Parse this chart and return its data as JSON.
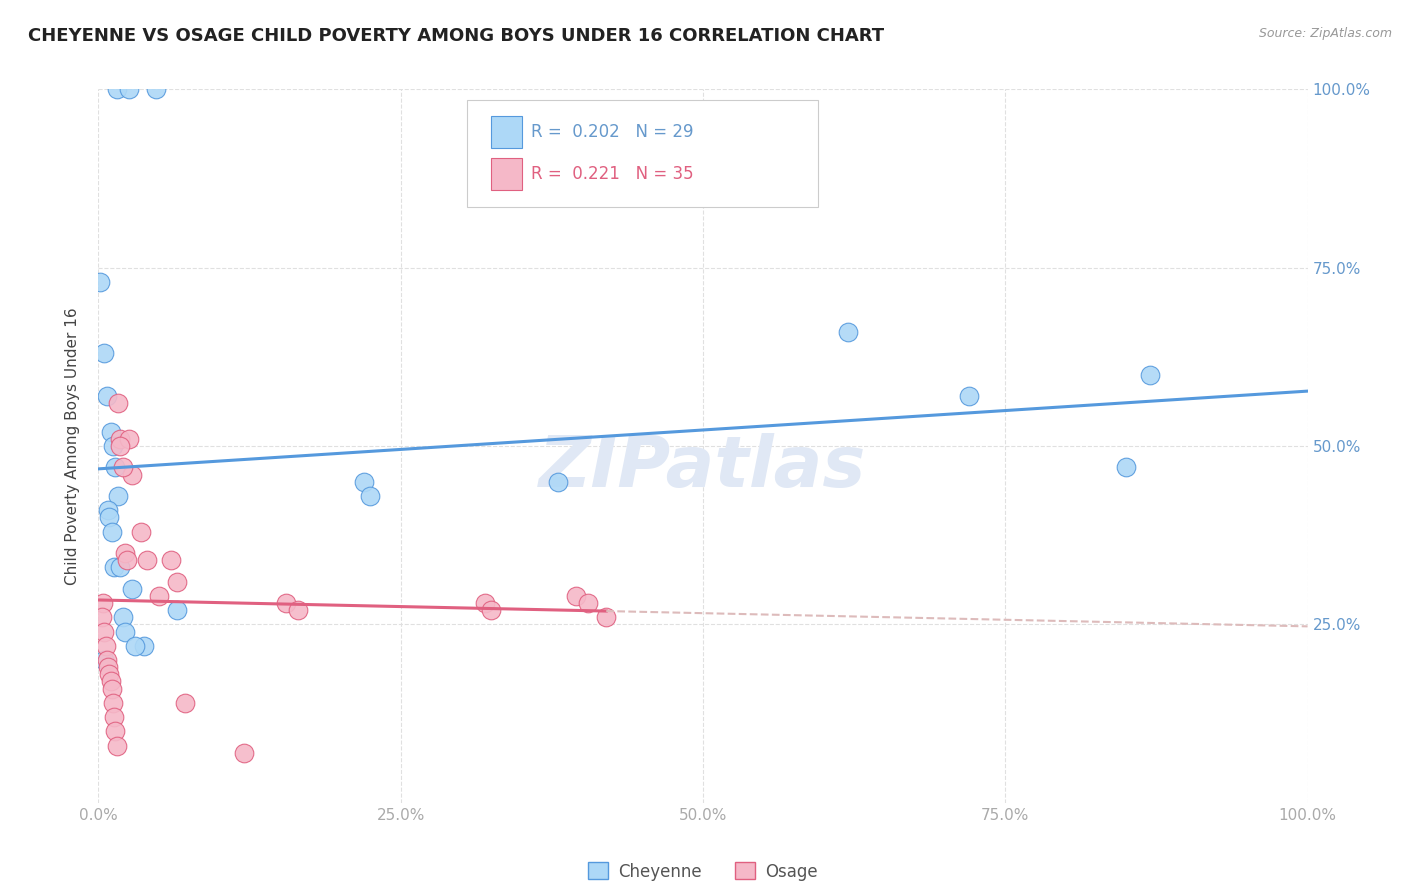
{
  "title": "CHEYENNE VS OSAGE CHILD POVERTY AMONG BOYS UNDER 16 CORRELATION CHART",
  "source": "Source: ZipAtlas.com",
  "ylabel": "Child Poverty Among Boys Under 16",
  "xlim": [
    0.0,
    1.0
  ],
  "ylim": [
    0.0,
    1.0
  ],
  "xticks": [
    0.0,
    0.25,
    0.5,
    0.75,
    1.0
  ],
  "yticks": [
    0.25,
    0.5,
    0.75,
    1.0
  ],
  "R_cheyenne": "0.202",
  "N_cheyenne": "29",
  "R_osage": "0.221",
  "N_osage": "35",
  "legend_cheyenne": "Cheyenne",
  "legend_osage": "Osage",
  "cheyenne_color": "#add8f7",
  "osage_color": "#f5b8c8",
  "cheyenne_line_color": "#5599dd",
  "osage_line_color": "#e06080",
  "dashed_color": "#ddbbbb",
  "watermark": "ZIPatlas",
  "watermark_color": "#e0e8f5",
  "grid_color": "#e0e0e0",
  "tick_color": "#aaaaaa",
  "right_tick_color": "#6699cc",
  "cheyenne_x": [
    0.015,
    0.025,
    0.048,
    0.001,
    0.005,
    0.007,
    0.01,
    0.012,
    0.014,
    0.016,
    0.008,
    0.009,
    0.011,
    0.013,
    0.018,
    0.028,
    0.065,
    0.02,
    0.022,
    0.038,
    0.03,
    0.38,
    0.62,
    0.72,
    0.85,
    0.87,
    0.005,
    0.22,
    0.225
  ],
  "cheyenne_y": [
    1.0,
    1.0,
    1.0,
    0.73,
    0.63,
    0.57,
    0.52,
    0.5,
    0.47,
    0.43,
    0.41,
    0.4,
    0.38,
    0.33,
    0.33,
    0.3,
    0.27,
    0.26,
    0.24,
    0.22,
    0.22,
    0.45,
    0.66,
    0.57,
    0.47,
    0.6,
    0.2,
    0.45,
    0.43
  ],
  "osage_x": [
    0.004,
    0.016,
    0.018,
    0.025,
    0.028,
    0.035,
    0.04,
    0.05,
    0.003,
    0.005,
    0.006,
    0.007,
    0.008,
    0.009,
    0.01,
    0.011,
    0.012,
    0.013,
    0.014,
    0.015,
    0.018,
    0.02,
    0.022,
    0.024,
    0.06,
    0.065,
    0.072,
    0.12,
    0.155,
    0.165,
    0.32,
    0.325,
    0.395,
    0.405,
    0.42
  ],
  "osage_y": [
    0.28,
    0.56,
    0.51,
    0.51,
    0.46,
    0.38,
    0.34,
    0.29,
    0.26,
    0.24,
    0.22,
    0.2,
    0.19,
    0.18,
    0.17,
    0.16,
    0.14,
    0.12,
    0.1,
    0.08,
    0.5,
    0.47,
    0.35,
    0.34,
    0.34,
    0.31,
    0.14,
    0.07,
    0.28,
    0.27,
    0.28,
    0.27,
    0.29,
    0.28,
    0.26
  ]
}
